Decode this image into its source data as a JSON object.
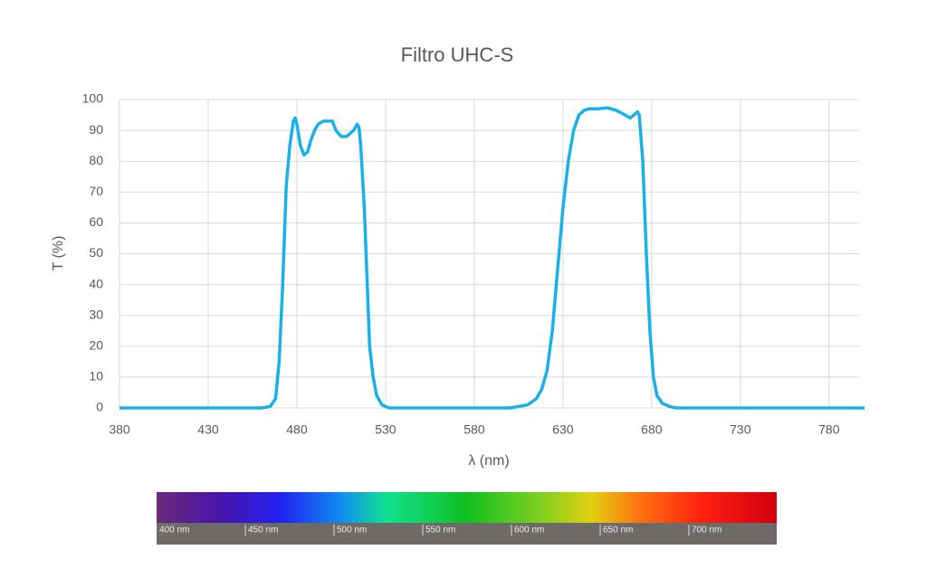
{
  "chart_data": {
    "type": "line",
    "title": "Filtro UHC-S",
    "x_label": "λ (nm)",
    "y_label": "T (%)",
    "xlim": [
      380,
      800
    ],
    "xticks": [
      380,
      430,
      480,
      530,
      580,
      630,
      680,
      730,
      780
    ],
    "ylim": [
      0,
      100
    ],
    "yticks": [
      0,
      10,
      20,
      30,
      40,
      50,
      60,
      70,
      80,
      90,
      100
    ],
    "grid": true,
    "series": [
      {
        "name": "UHC-S",
        "color": "#1ab0e8",
        "x": [
          380,
          460,
          465,
          468,
          470,
          472,
          474,
          476,
          478,
          479,
          480,
          482,
          484,
          486,
          488,
          490,
          492,
          495,
          500,
          502,
          505,
          508,
          510,
          512,
          514,
          515,
          516,
          518,
          520,
          521,
          523,
          525,
          528,
          532,
          600,
          605,
          610,
          615,
          618,
          621,
          624,
          627,
          630,
          633,
          636,
          639,
          642,
          645,
          650,
          655,
          660,
          665,
          668,
          670,
          672,
          673,
          675,
          677,
          679,
          681,
          683,
          686,
          690,
          694,
          800
        ],
        "values": [
          0,
          0,
          0.5,
          3,
          15,
          40,
          72,
          85,
          93,
          94,
          92,
          85,
          82,
          83,
          87,
          90,
          92,
          93,
          93,
          90,
          88,
          88,
          89,
          90,
          92,
          91,
          85,
          65,
          35,
          20,
          10,
          4,
          1,
          0,
          0,
          0.5,
          1,
          3,
          6,
          12,
          25,
          45,
          65,
          80,
          90,
          95,
          96.5,
          97,
          97,
          97.3,
          96.5,
          95,
          94,
          95,
          96,
          95,
          80,
          50,
          25,
          10,
          4,
          1.5,
          0.5,
          0,
          0
        ]
      }
    ],
    "spectrum_labels": [
      "400 nm",
      "450 nm",
      "500 nm",
      "550 nm",
      "600 nm",
      "650 nm",
      "700 nm"
    ]
  }
}
